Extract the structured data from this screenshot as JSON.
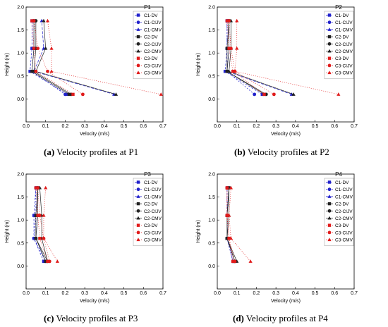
{
  "legend_series": [
    {
      "name": "C1-DV",
      "color": "#2222cc",
      "marker": "square",
      "dash": "3,2"
    },
    {
      "name": "C1-CIJV",
      "color": "#2222cc",
      "marker": "circle",
      "dash": "2,2"
    },
    {
      "name": "C1-CMV",
      "color": "#2222cc",
      "marker": "triangle",
      "dash": "4,2"
    },
    {
      "name": "C2-DV",
      "color": "#222222",
      "marker": "square",
      "dash": ""
    },
    {
      "name": "C2-CIJV",
      "color": "#222222",
      "marker": "circle",
      "dash": ""
    },
    {
      "name": "C2-CMV",
      "color": "#222222",
      "marker": "triangle",
      "dash": ""
    },
    {
      "name": "C3-DV",
      "color": "#e01b1b",
      "marker": "square",
      "dash": "1,2"
    },
    {
      "name": "C3-CIJV",
      "color": "#e01b1b",
      "marker": "circle",
      "dash": "1,2"
    },
    {
      "name": "C3-CMV",
      "color": "#e01b1b",
      "marker": "triangle",
      "dash": "1,2"
    }
  ],
  "chart_data": [
    {
      "type": "line",
      "title": "P1",
      "xlabel": "Velocity (m/s)",
      "ylabel": "Height (m)",
      "xlim": [
        0.0,
        0.7
      ],
      "ylim": [
        -0.5,
        2.0
      ],
      "xticks": [
        "0.0",
        "0.1",
        "0.2",
        "0.3",
        "0.4",
        "0.5",
        "0.6",
        "0.7"
      ],
      "yticks": [
        "0.0",
        "0.5",
        "1.0",
        "1.5",
        "2.0"
      ],
      "y": [
        0.1,
        0.6,
        1.1,
        1.7
      ],
      "series": [
        {
          "name": "C1-DV",
          "values": [
            0.21,
            0.02,
            0.03,
            0.03
          ]
        },
        {
          "name": "C1-CIJV",
          "values": [
            0.2,
            0.03,
            0.04,
            0.04
          ]
        },
        {
          "name": "C1-CMV",
          "values": [
            0.45,
            0.04,
            0.09,
            0.08
          ]
        },
        {
          "name": "C2-DV",
          "values": [
            0.22,
            0.03,
            0.04,
            0.04
          ]
        },
        {
          "name": "C2-CIJV",
          "values": [
            0.23,
            0.04,
            0.05,
            0.05
          ]
        },
        {
          "name": "C2-CMV",
          "values": [
            0.46,
            0.05,
            0.1,
            0.09
          ]
        },
        {
          "name": "C3-DV",
          "values": [
            0.24,
            0.05,
            0.04,
            0.03
          ]
        },
        {
          "name": "C3-CIJV",
          "values": [
            0.29,
            0.11,
            0.06,
            0.04
          ]
        },
        {
          "name": "C3-CMV",
          "values": [
            0.69,
            0.13,
            0.13,
            0.11
          ]
        }
      ]
    },
    {
      "type": "line",
      "title": "P2",
      "xlabel": "Velocity (m/s)",
      "ylabel": "Height (m)",
      "xlim": [
        0.0,
        0.7
      ],
      "ylim": [
        -0.5,
        2.0
      ],
      "xticks": [
        "0.0",
        "0.1",
        "0.2",
        "0.3",
        "0.4",
        "0.5",
        "0.6",
        "0.7"
      ],
      "yticks": [
        "0.0",
        "0.5",
        "1.0",
        "1.5",
        "2.0"
      ],
      "y": [
        0.1,
        0.6,
        1.1,
        1.7
      ],
      "series": [
        {
          "name": "C1-DV",
          "values": [
            0.23,
            0.04,
            0.05,
            0.05
          ]
        },
        {
          "name": "C1-CIJV",
          "values": [
            0.19,
            0.05,
            0.05,
            0.05
          ]
        },
        {
          "name": "C1-CMV",
          "values": [
            0.38,
            0.05,
            0.06,
            0.06
          ]
        },
        {
          "name": "C2-DV",
          "values": [
            0.24,
            0.05,
            0.05,
            0.06
          ]
        },
        {
          "name": "C2-CIJV",
          "values": [
            0.25,
            0.05,
            0.06,
            0.06
          ]
        },
        {
          "name": "C2-CMV",
          "values": [
            0.39,
            0.06,
            0.07,
            0.07
          ]
        },
        {
          "name": "C3-DV",
          "values": [
            0.24,
            0.08,
            0.06,
            0.05
          ]
        },
        {
          "name": "C3-CIJV",
          "values": [
            0.29,
            0.09,
            0.07,
            0.06
          ]
        },
        {
          "name": "C3-CMV",
          "values": [
            0.62,
            0.09,
            0.1,
            0.1
          ]
        }
      ]
    },
    {
      "type": "line",
      "title": "P3",
      "xlabel": "Velocity (m/s)",
      "ylabel": "Height (m)",
      "xlim": [
        0.0,
        0.7
      ],
      "ylim": [
        -0.5,
        2.0
      ],
      "xticks": [
        "0.0",
        "0.1",
        "0.2",
        "0.3",
        "0.4",
        "0.5",
        "0.6",
        "0.7"
      ],
      "yticks": [
        "0.0",
        "0.5",
        "1.0",
        "1.5",
        "2.0"
      ],
      "y": [
        0.1,
        0.6,
        1.1,
        1.7
      ],
      "series": [
        {
          "name": "C1-DV",
          "values": [
            0.09,
            0.04,
            0.04,
            0.05
          ]
        },
        {
          "name": "C1-CIJV",
          "values": [
            0.1,
            0.04,
            0.05,
            0.05
          ]
        },
        {
          "name": "C1-CMV",
          "values": [
            0.1,
            0.05,
            0.05,
            0.06
          ]
        },
        {
          "name": "C2-DV",
          "values": [
            0.1,
            0.05,
            0.05,
            0.06
          ]
        },
        {
          "name": "C2-CIJV",
          "values": [
            0.11,
            0.05,
            0.06,
            0.06
          ]
        },
        {
          "name": "C2-CMV",
          "values": [
            0.11,
            0.08,
            0.08,
            0.07
          ]
        },
        {
          "name": "C3-DV",
          "values": [
            0.11,
            0.07,
            0.06,
            0.05
          ]
        },
        {
          "name": "C3-CIJV",
          "values": [
            0.12,
            0.09,
            0.07,
            0.06
          ]
        },
        {
          "name": "C3-CMV",
          "values": [
            0.16,
            0.09,
            0.09,
            0.1
          ]
        }
      ]
    },
    {
      "type": "line",
      "title": "P4",
      "xlabel": "Velocity (m/s)",
      "ylabel": "Height (m)",
      "xlim": [
        0.0,
        0.7
      ],
      "ylim": [
        -0.5,
        2.0
      ],
      "xticks": [
        "0.0",
        "0.1",
        "0.2",
        "0.3",
        "0.4",
        "0.5",
        "0.6",
        "0.7"
      ],
      "yticks": [
        "0.0",
        "0.5",
        "1.0",
        "1.5",
        "2.0"
      ],
      "y": [
        0.1,
        0.6,
        1.1,
        1.7
      ],
      "series": [
        {
          "name": "C1-DV",
          "values": [
            0.08,
            0.05,
            0.05,
            0.05
          ]
        },
        {
          "name": "C1-CIJV",
          "values": [
            0.08,
            0.05,
            0.05,
            0.05
          ]
        },
        {
          "name": "C1-CMV",
          "values": [
            0.09,
            0.05,
            0.05,
            0.06
          ]
        },
        {
          "name": "C2-DV",
          "values": [
            0.09,
            0.05,
            0.05,
            0.06
          ]
        },
        {
          "name": "C2-CIJV",
          "values": [
            0.09,
            0.05,
            0.05,
            0.06
          ]
        },
        {
          "name": "C2-CMV",
          "values": [
            0.1,
            0.05,
            0.06,
            0.06
          ]
        },
        {
          "name": "C3-DV",
          "values": [
            0.08,
            0.06,
            0.05,
            0.05
          ]
        },
        {
          "name": "C3-CIJV",
          "values": [
            0.09,
            0.06,
            0.05,
            0.05
          ]
        },
        {
          "name": "C3-CMV",
          "values": [
            0.17,
            0.07,
            0.06,
            0.07
          ]
        }
      ]
    }
  ],
  "captions": [
    {
      "label": "(a)",
      "text": " Velocity profiles at P1"
    },
    {
      "label": "(b)",
      "text": " Velocity profiles at P2"
    },
    {
      "label": "(c)",
      "text": " Velocity profiles at P3"
    },
    {
      "label": "(d)",
      "text": " Velocity profiles at P4"
    }
  ]
}
